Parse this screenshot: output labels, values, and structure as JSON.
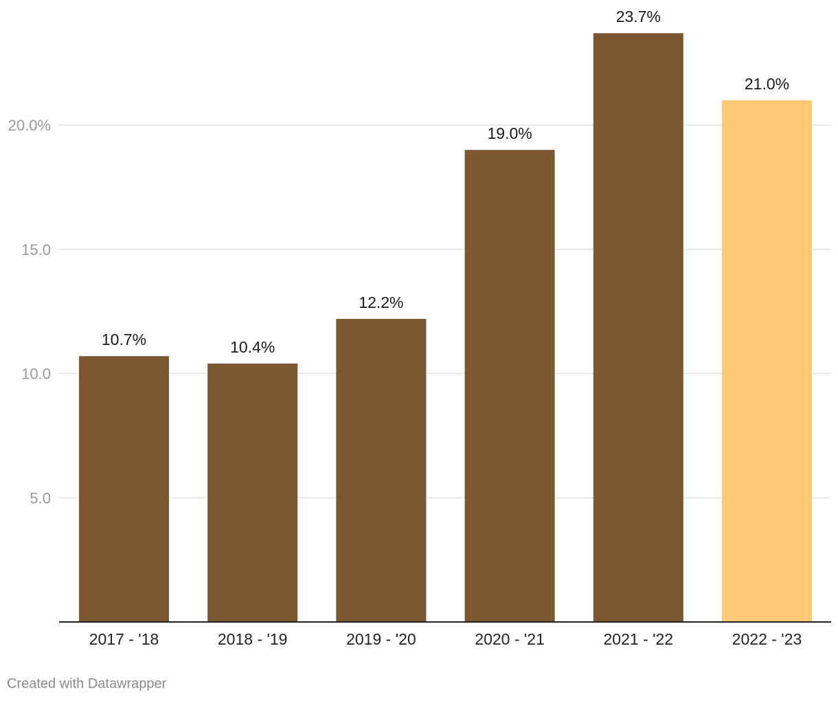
{
  "chart_data": {
    "type": "bar",
    "title": "",
    "xlabel": "",
    "ylabel": "",
    "categories": [
      "2017 - '18",
      "2018 - '19",
      "2019 - '20",
      "2020 - '21",
      "2021 - '22",
      "2022 - '23"
    ],
    "values": [
      10.7,
      10.4,
      12.2,
      19.0,
      23.7,
      21.0
    ],
    "data_labels": [
      "10.7%",
      "10.4%",
      "12.2%",
      "19.0%",
      "23.7%",
      "21.0%"
    ],
    "bar_colors": [
      "#7d5632",
      "#7d5632",
      "#7d5632",
      "#7d5632",
      "#7d5632",
      "#fdc977"
    ],
    "yticks": [
      {
        "value": 5,
        "label": "5.0"
      },
      {
        "value": 10,
        "label": "10.0"
      },
      {
        "value": 15,
        "label": "15.0"
      },
      {
        "value": 20,
        "label": "20.0%"
      }
    ],
    "ylim": [
      0,
      23.7
    ],
    "grid": true,
    "legend": "none"
  },
  "footer": {
    "credit": "Created with Datawrapper"
  }
}
